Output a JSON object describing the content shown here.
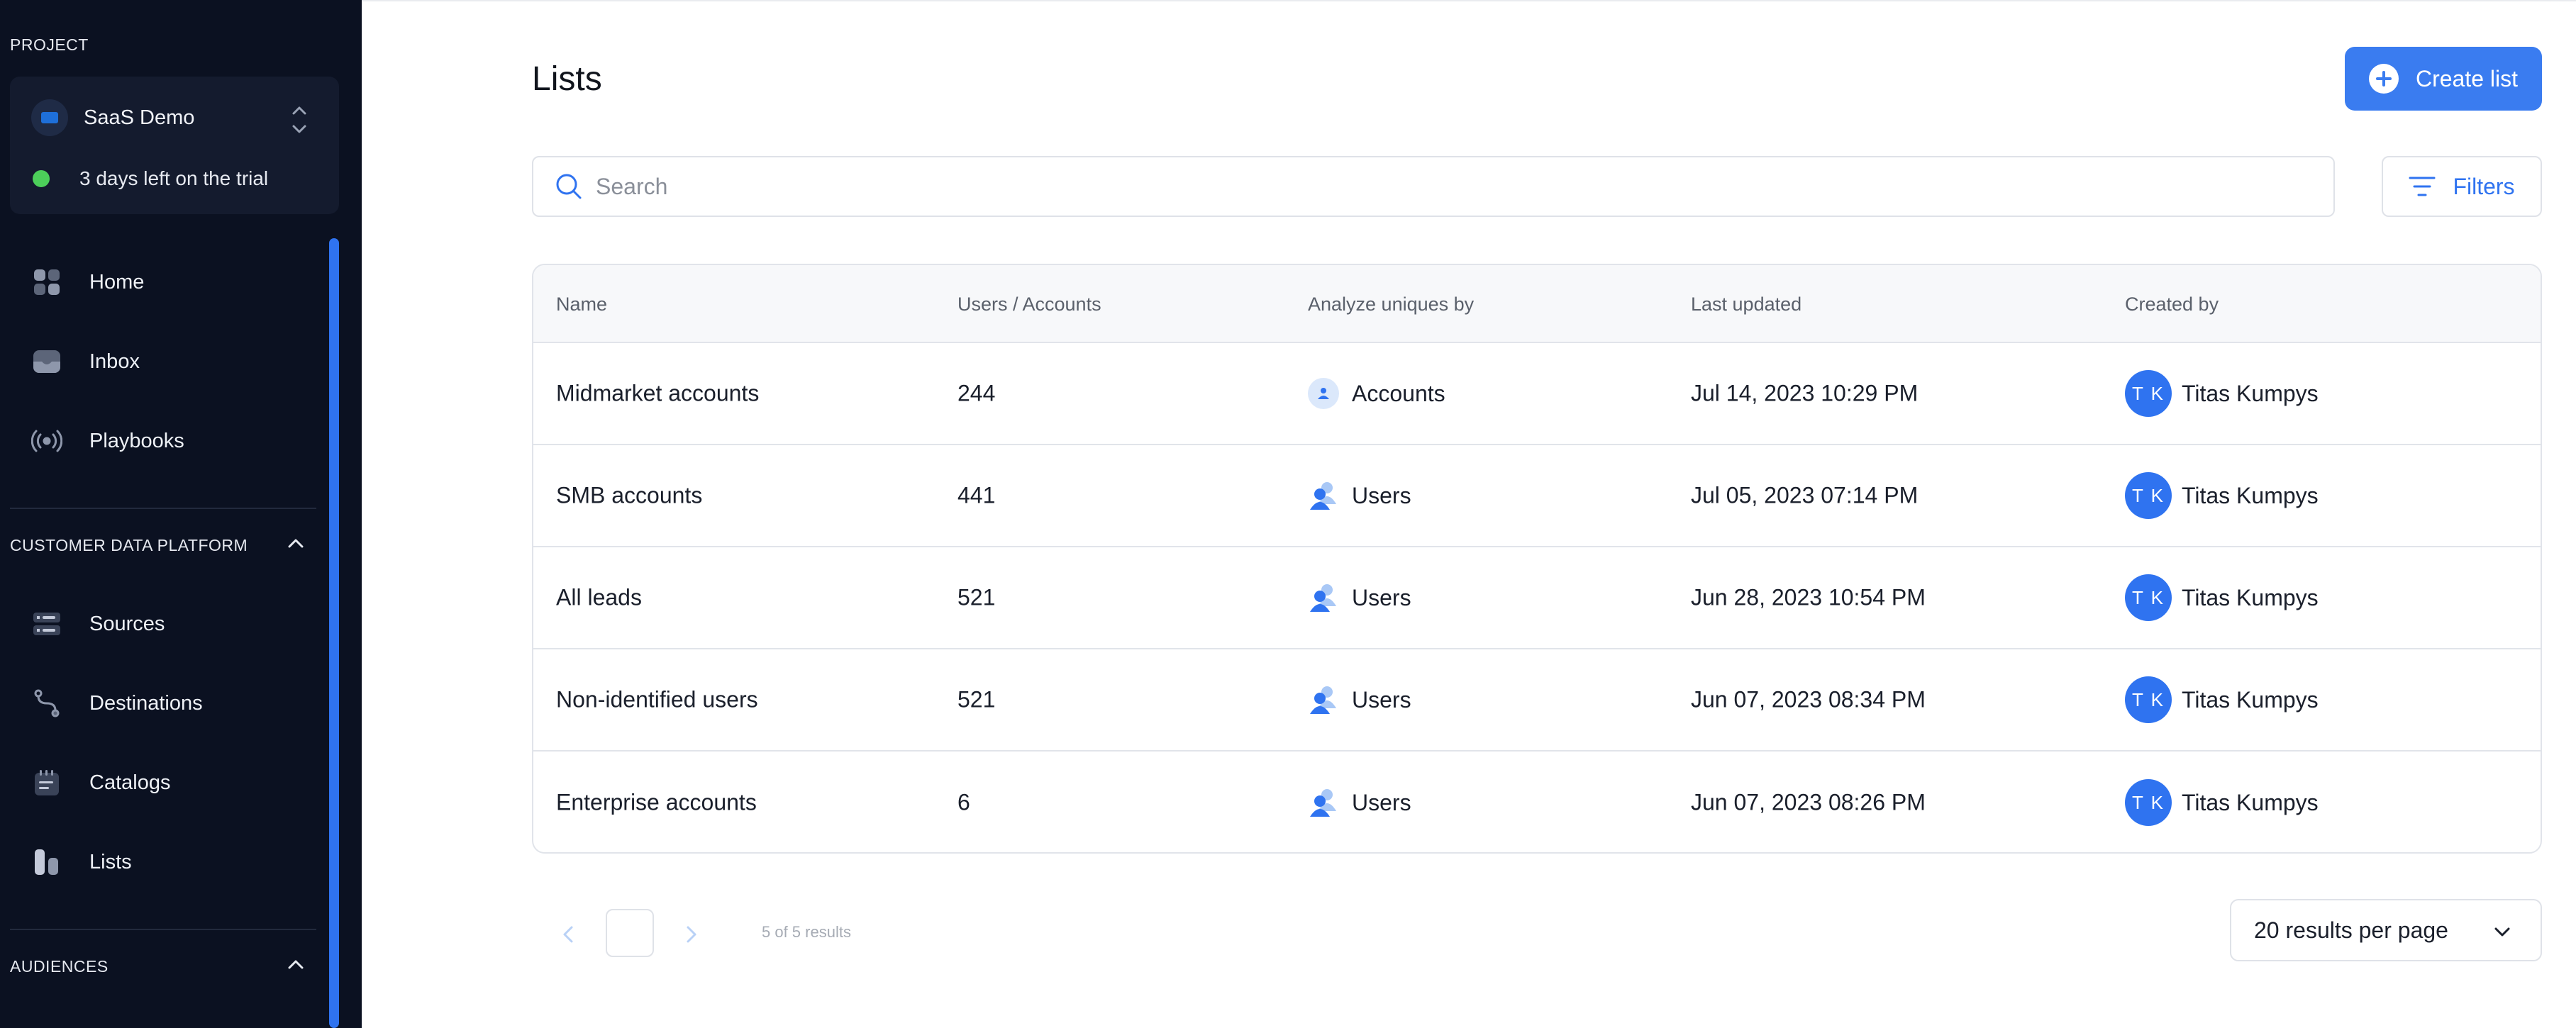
{
  "sidebar": {
    "project_section": "PROJECT",
    "project_name": "SaaS Demo",
    "trial_text": "3 days left on the trial",
    "nav": [
      {
        "label": "Home",
        "icon": "home-icon"
      },
      {
        "label": "Inbox",
        "icon": "inbox-icon"
      },
      {
        "label": "Playbooks",
        "icon": "playbooks-icon"
      }
    ],
    "cdp_section": "CUSTOMER DATA PLATFORM",
    "cdp_nav": [
      {
        "label": "Sources",
        "icon": "sources-icon"
      },
      {
        "label": "Destinations",
        "icon": "destinations-icon"
      },
      {
        "label": "Catalogs",
        "icon": "catalogs-icon"
      },
      {
        "label": "Lists",
        "icon": "lists-icon"
      }
    ],
    "audiences_section": "AUDIENCES"
  },
  "main": {
    "title": "Lists",
    "create_button": "Create list",
    "search_placeholder": "Search",
    "filters_button": "Filters",
    "columns": [
      "Name",
      "Users / Accounts",
      "Analyze uniques by",
      "Last updated",
      "Created by"
    ],
    "rows": [
      {
        "name": "Midmarket accounts",
        "count": "244",
        "uniques": "Accounts",
        "updated": "Jul 14, 2023 10:29 PM",
        "initials": "T K",
        "creator": "Titas Kumpys"
      },
      {
        "name": "SMB accounts",
        "count": "441",
        "uniques": "Users",
        "updated": "Jul 05, 2023 07:14 PM",
        "initials": "T K",
        "creator": "Titas Kumpys"
      },
      {
        "name": "All leads",
        "count": "521",
        "uniques": "Users",
        "updated": "Jun 28, 2023 10:54 PM",
        "initials": "T K",
        "creator": "Titas Kumpys"
      },
      {
        "name": "Non-identified users",
        "count": "521",
        "uniques": "Users",
        "updated": "Jun 07, 2023 08:34 PM",
        "initials": "T K",
        "creator": "Titas Kumpys"
      },
      {
        "name": "Enterprise accounts",
        "count": "6",
        "uniques": "Users",
        "updated": "Jun 07, 2023 08:26 PM",
        "initials": "T K",
        "creator": "Titas Kumpys"
      }
    ],
    "pagination_text": "5 of 5 results",
    "per_page": "20 results per page"
  },
  "colors": {
    "sidebar_bg": "#0b1121",
    "accent": "#3a7cf0",
    "trial_dot": "#4ccf5a"
  }
}
